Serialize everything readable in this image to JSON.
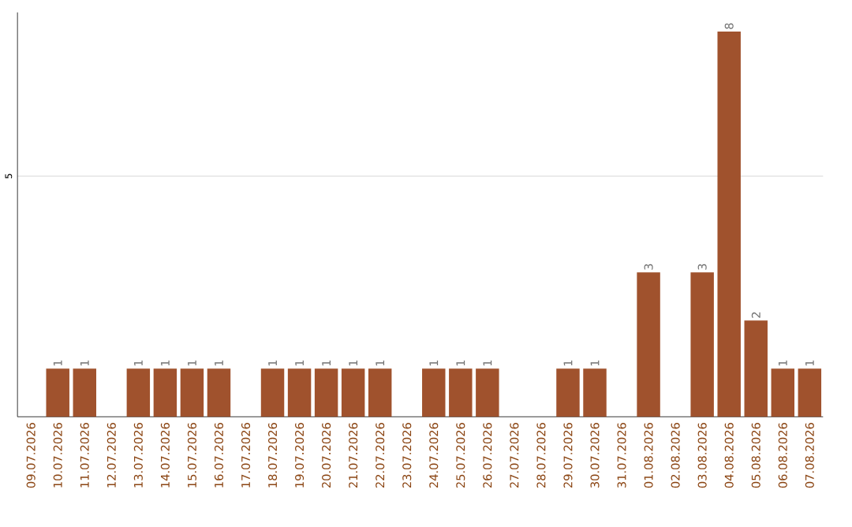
{
  "chart_data": {
    "type": "bar",
    "categories": [
      "09.07.2026",
      "10.07.2026",
      "11.07.2026",
      "12.07.2026",
      "13.07.2026",
      "14.07.2026",
      "15.07.2026",
      "16.07.2026",
      "17.07.2026",
      "18.07.2026",
      "19.07.2026",
      "20.07.2026",
      "21.07.2026",
      "22.07.2026",
      "23.07.2026",
      "24.07.2026",
      "25.07.2026",
      "26.07.2026",
      "27.07.2026",
      "28.07.2026",
      "29.07.2026",
      "30.07.2026",
      "31.07.2026",
      "01.08.2026",
      "02.08.2026",
      "03.08.2026",
      "04.08.2026",
      "05.08.2026",
      "06.08.2026",
      "07.08.2026"
    ],
    "values": [
      null,
      1,
      1,
      null,
      1,
      1,
      1,
      1,
      null,
      1,
      1,
      1,
      1,
      1,
      null,
      1,
      1,
      1,
      null,
      null,
      1,
      1,
      null,
      3,
      null,
      3,
      8,
      2,
      1,
      1
    ],
    "color": "#a0522d",
    "ylim": [
      0,
      8.4
    ],
    "yticks": [
      5
    ],
    "grid": "y",
    "data_labels": true
  }
}
